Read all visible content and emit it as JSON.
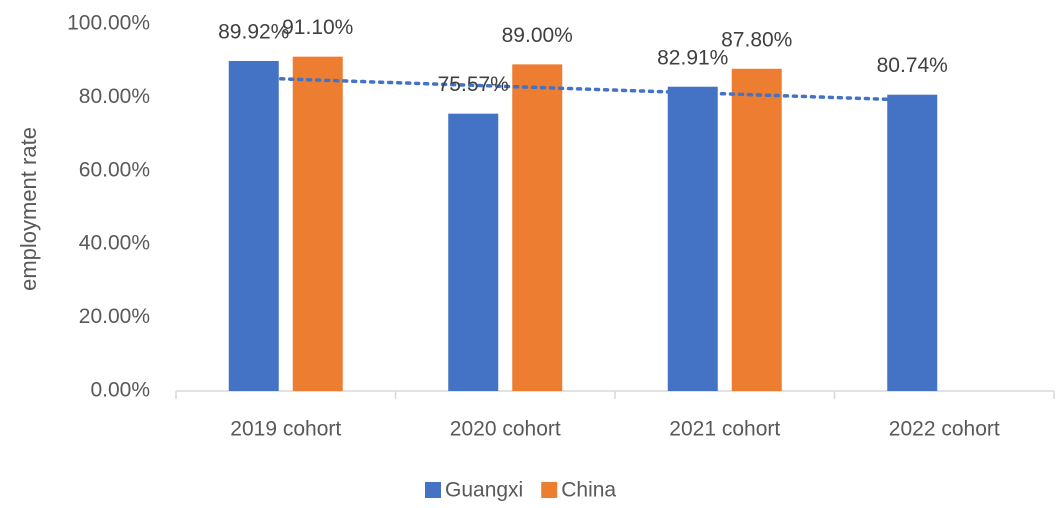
{
  "chart_data": {
    "type": "bar",
    "categories": [
      "2019 cohort",
      "2020 cohort",
      "2021 cohort",
      "2022 cohort"
    ],
    "series": [
      {
        "name": "Guangxi",
        "color": "#4472C4",
        "values": [
          89.92,
          75.57,
          82.91,
          80.74
        ],
        "labels": [
          "89.92%",
          "75.57%",
          "82.91%",
          "80.74%"
        ]
      },
      {
        "name": "China",
        "color": "#ED7D31",
        "values": [
          91.1,
          89.0,
          87.8,
          null
        ],
        "labels": [
          "91.10%",
          "89.00%",
          "87.80%",
          null
        ]
      }
    ],
    "trendline": {
      "series": "Guangxi",
      "style": "dotted",
      "color": "#4472C4"
    },
    "ylabel": "employment rate",
    "xlabel": "",
    "ylim": [
      0,
      100
    ],
    "yticks": [
      0,
      20,
      40,
      60,
      80,
      100
    ],
    "ytick_labels": [
      "0.00%",
      "20.00%",
      "40.00%",
      "60.00%",
      "80.00%",
      "100.00%"
    ],
    "legend_position": "bottom",
    "grid": false
  }
}
